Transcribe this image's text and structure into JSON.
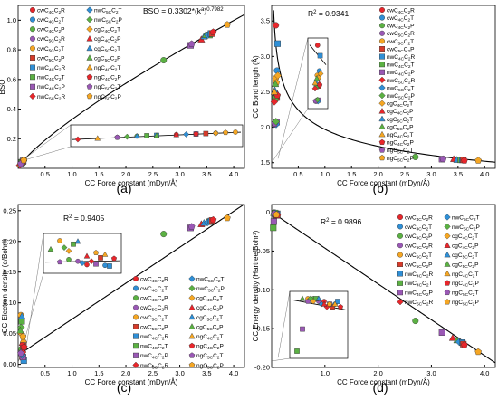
{
  "figure": {
    "panel_labels": [
      "(a)",
      "(b)",
      "(c)",
      "(d)"
    ]
  },
  "legend_order": [
    "cwC4C|R",
    "cwC4C|T",
    "cwC4C|P",
    "cwC5C|R",
    "cwC5C|T",
    "cwC5C|P",
    "nwC4C|R",
    "nwC4C|T",
    "nwC4C|P",
    "nwC5C|R",
    "nwC5C|T",
    "nwC5C|P",
    "cgC4C|T",
    "cgC4C|P",
    "cgC5C|T",
    "cgC5C|P",
    "ngC4C|T",
    "ngC4C|P",
    "ngC5C|T",
    "ngC5C|P"
  ],
  "series_style": {
    "cwC4C|R": {
      "color": "#e8262b",
      "shape": "circle"
    },
    "cwC4C|T": {
      "color": "#2f8fd6",
      "shape": "circle"
    },
    "cwC4C|P": {
      "color": "#5bb143",
      "shape": "circle"
    },
    "cwC5C|R": {
      "color": "#9a58b5",
      "shape": "circle"
    },
    "cwC5C|T": {
      "color": "#f5a623",
      "shape": "circle"
    },
    "cwC5C|P": {
      "color": "#d63b2a",
      "shape": "square"
    },
    "nwC4C|R": {
      "color": "#2f8fd6",
      "shape": "square"
    },
    "nwC4C|T": {
      "color": "#5bb143",
      "shape": "square"
    },
    "nwC4C|P": {
      "color": "#9a58b5",
      "shape": "square"
    },
    "nwC5C|R": {
      "color": "#e8262b",
      "shape": "diamond"
    },
    "nwC5C|T": {
      "color": "#2f8fd6",
      "shape": "diamond"
    },
    "nwC5C|P": {
      "color": "#5bb143",
      "shape": "diamond"
    },
    "cgC4C|T": {
      "color": "#f5a623",
      "shape": "diamond"
    },
    "cgC4C|P": {
      "color": "#e8262b",
      "shape": "triangle"
    },
    "cgC5C|T": {
      "color": "#2f8fd6",
      "shape": "triangle"
    },
    "cgC5C|P": {
      "color": "#5bb143",
      "shape": "triangle"
    },
    "ngC4C|T": {
      "color": "#f5a623",
      "shape": "triangle"
    },
    "ngC4C|P": {
      "color": "#e8262b",
      "shape": "pentagon"
    },
    "ngC5C|T": {
      "color": "#9a58b5",
      "shape": "pentagon"
    },
    "ngC5C|P": {
      "color": "#f5a623",
      "shape": "pentagon"
    }
  },
  "chart_data": [
    {
      "panel": "(a)",
      "type": "scatter",
      "xlabel": "CC Force constant (mDyn/Å)",
      "ylabel": "BSO",
      "xlim": [
        0,
        4.2
      ],
      "ylim": [
        0,
        1.1
      ],
      "xticks": [
        "0.5",
        "1.0",
        "1.5",
        "2.0",
        "2.5",
        "3.0",
        "3.5",
        "4.0"
      ],
      "yticks": [
        "0.2",
        "0.4",
        "0.6",
        "0.8",
        "1.0"
      ],
      "annotation": {
        "base": "BSO = 0.3302*(k",
        "sup1": "a",
        "mid": ")",
        "sup2": "0.7982"
      },
      "fit": {
        "kind": "power",
        "a": 0.3302,
        "b": 0.7982
      },
      "inset": {
        "x_range": [
          0.02,
          0.12
        ]
      },
      "points": [
        {
          "s": "cwC4C|R",
          "x": 0.08,
          "y": 0.045
        },
        {
          "s": "cwC4C|T",
          "x": 0.1,
          "y": 0.052
        },
        {
          "s": "cwC4C|P",
          "x": 0.06,
          "y": 0.037
        },
        {
          "s": "cwC5C|R",
          "x": 0.05,
          "y": 0.031
        },
        {
          "s": "cwC5C|T",
          "x": 0.11,
          "y": 0.057
        },
        {
          "s": "cwC5C|P",
          "x": 0.095,
          "y": 0.05
        },
        {
          "s": "nwC4C|R",
          "x": 0.07,
          "y": 0.041
        },
        {
          "s": "nwC4C|T",
          "x": 0.065,
          "y": 0.039
        },
        {
          "s": "nwC4C|P",
          "x": 0.09,
          "y": 0.048
        },
        {
          "s": "nwC5C|R",
          "x": 0.03,
          "y": 0.021
        },
        {
          "s": "nwC5C|T",
          "x": 0.085,
          "y": 0.046
        },
        {
          "s": "nwC5C|P",
          "x": 0.055,
          "y": 0.034
        },
        {
          "s": "cgC4C|T",
          "x": 0.1,
          "y": 0.052
        },
        {
          "s": "cgC4C|P",
          "x": 0.08,
          "y": 0.044
        },
        {
          "s": "cgC5C|T",
          "x": 0.06,
          "y": 0.037
        },
        {
          "s": "cgC5C|P",
          "x": 0.07,
          "y": 0.04
        },
        {
          "s": "ngC4C|T",
          "x": 0.04,
          "y": 0.026
        },
        {
          "s": "ngC4C|P",
          "x": 0.09,
          "y": 0.048
        },
        {
          "s": "ngC5C|T",
          "x": 0.05,
          "y": 0.031
        },
        {
          "s": "ngC5C|P",
          "x": 0.105,
          "y": 0.055
        },
        {
          "s": "cwC4C|P",
          "x": 2.7,
          "y": 0.73
        },
        {
          "s": "nwC4C|P",
          "x": 3.2,
          "y": 0.83
        },
        {
          "s": "ngC5C|T",
          "x": 3.22,
          "y": 0.84
        },
        {
          "s": "cgC4C|P",
          "x": 3.4,
          "y": 0.87
        },
        {
          "s": "cgC5C|T",
          "x": 3.45,
          "y": 0.89
        },
        {
          "s": "cgC5C|P",
          "x": 3.48,
          "y": 0.9
        },
        {
          "s": "nwC4C|T",
          "x": 3.55,
          "y": 0.9
        },
        {
          "s": "nwC5C|T",
          "x": 3.52,
          "y": 0.9
        },
        {
          "s": "nwC4C|R",
          "x": 3.58,
          "y": 0.91
        },
        {
          "s": "cwC5C|P",
          "x": 3.6,
          "y": 0.91
        },
        {
          "s": "ngC4C|P",
          "x": 3.62,
          "y": 0.92
        },
        {
          "s": "ngC5C|P",
          "x": 3.88,
          "y": 0.97
        }
      ]
    },
    {
      "panel": "(b)",
      "type": "scatter",
      "xlabel": "CC Force constant (mDyn/Å)",
      "ylabel": "CC Bond length (Å)",
      "xlim": [
        0,
        4.2
      ],
      "ylim": [
        1.42,
        3.72
      ],
      "xticks": [
        "0.5",
        "1.0",
        "1.5",
        "2.0",
        "2.5",
        "3.0",
        "3.5",
        "4.0"
      ],
      "yticks": [
        "1.5",
        "2.0",
        "2.5",
        "3.0",
        "3.5"
      ],
      "annotation": {
        "base": "R",
        "sup1": "2",
        "mid": " = 0.9341",
        "sup2": ""
      },
      "fit": {
        "kind": "power",
        "a": 1.97,
        "b": -0.187
      },
      "inset": {
        "x_range": [
          0.05,
          0.12
        ]
      },
      "points": [
        {
          "s": "cwC4C|R",
          "x": 0.08,
          "y": 3.44
        },
        {
          "s": "cwC4C|T",
          "x": 0.1,
          "y": 2.8
        },
        {
          "s": "nwC4C|R",
          "x": 0.11,
          "y": 3.18
        },
        {
          "s": "cwC4C|P",
          "x": 0.07,
          "y": 2.43
        },
        {
          "s": "cwC5C|R",
          "x": 0.06,
          "y": 2.04
        },
        {
          "s": "cwC5C|T",
          "x": 0.075,
          "y": 2.69
        },
        {
          "s": "cwC5C|P",
          "x": 0.095,
          "y": 2.42
        },
        {
          "s": "nwC4C|T",
          "x": 0.065,
          "y": 2.41
        },
        {
          "s": "nwC4C|P",
          "x": 0.09,
          "y": 2.07
        },
        {
          "s": "nwC5C|R",
          "x": 0.05,
          "y": 2.36
        },
        {
          "s": "nwC5C|T",
          "x": 0.085,
          "y": 2.04
        },
        {
          "s": "cgC4C|P",
          "x": 0.1,
          "y": 2.48
        },
        {
          "s": "cgC5C|T",
          "x": 0.06,
          "y": 2.52
        },
        {
          "s": "ngC4C|P",
          "x": 0.105,
          "y": 2.45
        },
        {
          "s": "ngC5C|T",
          "x": 0.055,
          "y": 2.05
        },
        {
          "s": "ngC5C|P",
          "x": 0.09,
          "y": 2.63
        },
        {
          "s": "cgC4C|T",
          "x": 0.115,
          "y": 2.73
        },
        {
          "s": "cgC5C|P",
          "x": 0.07,
          "y": 2.61
        },
        {
          "s": "ngC4C|T",
          "x": 0.05,
          "y": 2.5
        },
        {
          "s": "nwC5C|P",
          "x": 0.08,
          "y": 2.08
        },
        {
          "s": "cwC4C|P",
          "x": 2.7,
          "y": 1.58
        },
        {
          "s": "nwC4C|P",
          "x": 3.2,
          "y": 1.55
        },
        {
          "s": "ngC5C|T",
          "x": 3.22,
          "y": 1.55
        },
        {
          "s": "cgC4C|P",
          "x": 3.42,
          "y": 1.55
        },
        {
          "s": "cgC5C|T",
          "x": 3.48,
          "y": 1.54
        },
        {
          "s": "nwC4C|T",
          "x": 3.55,
          "y": 1.54
        },
        {
          "s": "nwC4C|R",
          "x": 3.58,
          "y": 1.54
        },
        {
          "s": "cwC5C|P",
          "x": 3.6,
          "y": 1.54
        },
        {
          "s": "ngC4C|P",
          "x": 3.62,
          "y": 1.53
        },
        {
          "s": "ngC5C|P",
          "x": 3.88,
          "y": 1.53
        }
      ]
    },
    {
      "panel": "(c)",
      "type": "scatter",
      "xlabel": "CC Force constant (mDyn/Å)",
      "ylabel": "CC Electron density (e/Bohr³)",
      "xlim": [
        0,
        4.2
      ],
      "ylim": [
        -0.005,
        0.26
      ],
      "xticks": [
        "0.5",
        "1.0",
        "1.5",
        "2.0",
        "2.5",
        "3.0",
        "3.5",
        "4.0"
      ],
      "yticks": [
        "0.00",
        "0.05",
        "0.10",
        "0.15",
        "0.20",
        "0.25"
      ],
      "annotation": {
        "base": "R",
        "sup1": "2",
        "mid": " = 0.9405",
        "sup2": ""
      },
      "fit": {
        "kind": "linear",
        "m": 0.0585,
        "c": 0.015
      },
      "inset": {
        "x_range": [
          0.02,
          0.12
        ]
      },
      "points": [
        {
          "s": "cwC4C|R",
          "x": 0.08,
          "y": 0.01
        },
        {
          "s": "cwC4C|T",
          "x": 0.1,
          "y": 0.008
        },
        {
          "s": "cwC4C|P",
          "x": 0.06,
          "y": 0.025
        },
        {
          "s": "cwC5C|R",
          "x": 0.07,
          "y": 0.02
        },
        {
          "s": "cwC5C|T",
          "x": 0.05,
          "y": 0.08
        },
        {
          "s": "cwC5C|P",
          "x": 0.095,
          "y": 0.03
        },
        {
          "s": "nwC4C|R",
          "x": 0.105,
          "y": 0.006
        },
        {
          "s": "nwC4C|T",
          "x": 0.065,
          "y": 0.07
        },
        {
          "s": "nwC4C|P",
          "x": 0.09,
          "y": 0.012
        },
        {
          "s": "nwC5C|R",
          "x": 0.085,
          "y": 0.02
        },
        {
          "s": "nwC5C|T",
          "x": 0.075,
          "y": 0.015
        },
        {
          "s": "nwC5C|P",
          "x": 0.055,
          "y": 0.06
        },
        {
          "s": "cgC4C|T",
          "x": 0.06,
          "y": 0.05
        },
        {
          "s": "cgC4C|P",
          "x": 0.08,
          "y": 0.035
        },
        {
          "s": "cgC5C|T",
          "x": 0.07,
          "y": 0.078
        },
        {
          "s": "cgC5C|P",
          "x": 0.04,
          "y": 0.055
        },
        {
          "s": "ngC4C|T",
          "x": 0.1,
          "y": 0.04
        },
        {
          "s": "ngC4C|P",
          "x": 0.11,
          "y": 0.028
        },
        {
          "s": "ngC5C|T",
          "x": 0.05,
          "y": 0.018
        },
        {
          "s": "ngC5C|P",
          "x": 0.09,
          "y": 0.045
        },
        {
          "s": "cwC4C|P",
          "x": 2.7,
          "y": 0.212
        },
        {
          "s": "nwC4C|P",
          "x": 3.2,
          "y": 0.222
        },
        {
          "s": "ngC5C|T",
          "x": 3.22,
          "y": 0.224
        },
        {
          "s": "cgC4C|P",
          "x": 3.4,
          "y": 0.228
        },
        {
          "s": "cgC5C|T",
          "x": 3.45,
          "y": 0.23
        },
        {
          "s": "nwC4C|T",
          "x": 3.55,
          "y": 0.232
        },
        {
          "s": "nwC5C|T",
          "x": 3.52,
          "y": 0.231
        },
        {
          "s": "nwC4C|R",
          "x": 3.58,
          "y": 0.233
        },
        {
          "s": "cwC5C|P",
          "x": 3.6,
          "y": 0.234
        },
        {
          "s": "ngC4C|P",
          "x": 3.62,
          "y": 0.235
        },
        {
          "s": "ngC5C|P",
          "x": 3.88,
          "y": 0.238
        }
      ]
    },
    {
      "panel": "(d)",
      "type": "scatter",
      "xlabel": "CC Force constant (mDyn/Å)",
      "ylabel": "CC Energy density (Hartree/Bohr³)",
      "xlim": [
        0,
        4.2
      ],
      "ylim": [
        -0.2,
        0.01
      ],
      "xticks": [
        "1.0",
        "2.0",
        "3.0",
        "4.0"
      ],
      "yticks": [
        "0",
        "-0.05",
        "-0.10",
        "-0.15",
        "-0.20"
      ],
      "annotation": {
        "base": "R",
        "sup1": "2",
        "mid": " = 0.9896",
        "sup2": ""
      },
      "fit": {
        "kind": "linear",
        "m": -0.0462,
        "c": 0.0
      },
      "inset": {
        "x_range": [
          0.02,
          0.12
        ]
      },
      "points": [
        {
          "s": "cwC4C|R",
          "x": 0.08,
          "y": -0.002
        },
        {
          "s": "cwC4C|T",
          "x": 0.1,
          "y": -0.003
        },
        {
          "s": "cwC4C|P",
          "x": 0.06,
          "y": -0.001
        },
        {
          "s": "cwC5C|R",
          "x": 0.07,
          "y": -0.002
        },
        {
          "s": "cwC5C|T",
          "x": 0.05,
          "y": -0.001
        },
        {
          "s": "cwC5C|P",
          "x": 0.095,
          "y": -0.004
        },
        {
          "s": "nwC4C|R",
          "x": 0.105,
          "y": -0.002
        },
        {
          "s": "nwC4C|T",
          "x": 0.065,
          "y": -0.001
        },
        {
          "s": "nwC4C|P",
          "x": 0.09,
          "y": -0.003
        },
        {
          "s": "nwC5C|R",
          "x": 0.085,
          "y": -0.004
        },
        {
          "s": "nwC5C|T",
          "x": 0.075,
          "y": -0.003
        },
        {
          "s": "nwC5C|P",
          "x": 0.055,
          "y": -0.001
        },
        {
          "s": "cgC4C|T",
          "x": 0.06,
          "y": -0.002
        },
        {
          "s": "cgC4C|P",
          "x": 0.08,
          "y": -0.003
        },
        {
          "s": "cgC5C|T",
          "x": 0.07,
          "y": -0.001
        },
        {
          "s": "cgC5C|P",
          "x": 0.04,
          "y": -0.001
        },
        {
          "s": "ngC4C|T",
          "x": 0.1,
          "y": -0.003
        },
        {
          "s": "ngC4C|P",
          "x": 0.11,
          "y": -0.004
        },
        {
          "s": "ngC5C|T",
          "x": 0.05,
          "y": -0.002
        },
        {
          "s": "ngC5C|P",
          "x": 0.09,
          "y": -0.003
        },
        {
          "s": "nwC4C|T",
          "x": 0.03,
          "y": -0.02
        },
        {
          "s": "nwC4C|P",
          "x": 0.04,
          "y": -0.012
        },
        {
          "s": "cwC4C|P",
          "x": 2.7,
          "y": -0.14
        },
        {
          "s": "nwC4C|P",
          "x": 3.2,
          "y": -0.155
        },
        {
          "s": "cgC4C|P",
          "x": 3.4,
          "y": -0.162
        },
        {
          "s": "cgC5C|P",
          "x": 3.48,
          "y": -0.165
        },
        {
          "s": "nwC5C|T",
          "x": 3.52,
          "y": -0.167
        },
        {
          "s": "nwC4C|R",
          "x": 3.58,
          "y": -0.168
        },
        {
          "s": "cwC5C|P",
          "x": 3.6,
          "y": -0.17
        },
        {
          "s": "ngC4C|P",
          "x": 3.62,
          "y": -0.171
        },
        {
          "s": "ngC5C|P",
          "x": 3.88,
          "y": -0.18
        }
      ]
    }
  ]
}
